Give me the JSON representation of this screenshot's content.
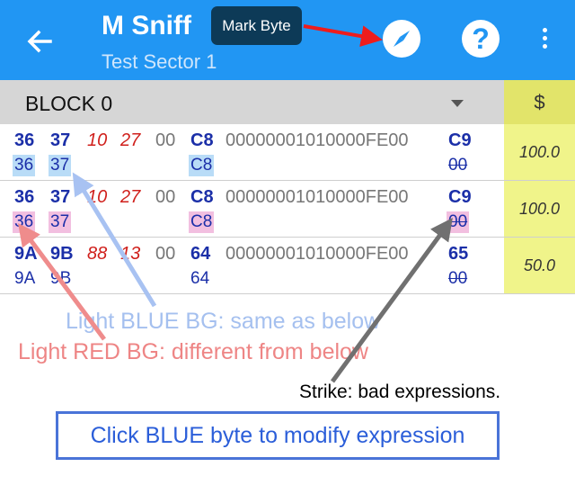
{
  "appbar": {
    "title": "M Sniff",
    "subtitle": "Test Sector 1",
    "tooltip": "Mark Byte",
    "help_label": "?",
    "icons": [
      "back-arrow-icon",
      "compass-icon",
      "help-icon",
      "more-vert-icon"
    ],
    "color": "#2196f3"
  },
  "block": {
    "label": "BLOCK 0",
    "value_header": "$"
  },
  "rows": [
    {
      "bytes": [
        "36",
        "37",
        "10",
        "27",
        "00",
        "C8",
        "00000001010000FE00",
        "C9"
      ],
      "exprs": [
        "36",
        "37",
        "C8",
        "00"
      ],
      "value": "100.0",
      "expr_state": "same-as-below"
    },
    {
      "bytes": [
        "36",
        "37",
        "10",
        "27",
        "00",
        "C8",
        "00000001010000FE00",
        "C9"
      ],
      "exprs": [
        "36",
        "37",
        "C8",
        "00"
      ],
      "value": "100.0",
      "expr_state": "different-from-below"
    },
    {
      "bytes": [
        "9A",
        "9B",
        "88",
        "13",
        "00",
        "64",
        "00000001010000FE00",
        "65"
      ],
      "exprs": [
        "9A",
        "9B",
        "64",
        "00"
      ],
      "value": "50.0",
      "expr_state": "plain"
    }
  ],
  "annotations": {
    "blue_bg": "Light BLUE BG: same as below",
    "red_bg": "Light RED BG: different from below",
    "strike": "Strike: bad expressions.",
    "click_hint": "Click BLUE byte  to modify expression"
  },
  "colors": {
    "blue_byte": "#1b2fa8",
    "red_byte": "#d0201c",
    "light_blue_bg": "#b9dcf7",
    "light_red_bg": "#f2bfe0",
    "value_column": "#f0f48a"
  }
}
